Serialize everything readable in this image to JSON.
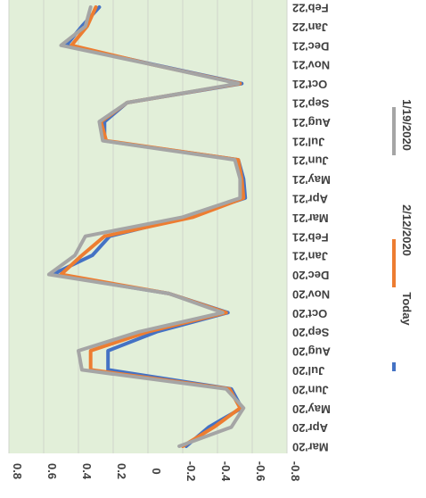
{
  "chart_data": {
    "type": "line",
    "orientation": "rotated-90",
    "plot_background": "#e2efd9",
    "grid": true,
    "legend_position": "right",
    "categories": [
      "Mar'20",
      "Apr'20",
      "May'20",
      "Jun'20",
      "Jul'20",
      "Aug'20",
      "Sep'20",
      "Oct'20",
      "Nov'20",
      "Dec'20",
      "Jan'21",
      "Feb'21",
      "Mar'21",
      "Apr'21",
      "May'21",
      "Jun'21",
      "Jul'21",
      "Aug'21",
      "Sep'21",
      "Oct'21",
      "Nov'21",
      "Dec'21",
      "Jan'22",
      "Feb'22"
    ],
    "ylim": [
      -0.8,
      0.8
    ],
    "y_ticks": [
      0.8,
      0.6,
      0.4,
      0.2,
      0,
      -0.2,
      -0.4,
      -0.6,
      -0.8
    ],
    "y_tick_labels": [
      "0.8",
      "0.6",
      "0.4",
      "0.2",
      "0",
      "-0.2",
      "-0.4",
      "-0.6",
      "-0.8"
    ],
    "series": [
      {
        "name": "Today",
        "color": "#4472c4",
        "values": [
          -0.22,
          -0.35,
          -0.54,
          -0.48,
          0.23,
          0.23,
          -0.05,
          -0.46,
          -0.12,
          0.55,
          0.32,
          0.22,
          -0.22,
          -0.56,
          -0.55,
          -0.52,
          0.25,
          0.25,
          0.12,
          -0.54,
          -0.03,
          0.47,
          0.38,
          0.28
        ]
      },
      {
        "name": "2/12/2020",
        "color": "#ed7d31",
        "values": [
          -0.2,
          -0.38,
          -0.53,
          -0.47,
          0.33,
          0.33,
          0.0,
          -0.45,
          -0.12,
          0.5,
          0.38,
          0.25,
          -0.26,
          -0.55,
          -0.54,
          -0.52,
          0.24,
          0.27,
          0.12,
          -0.53,
          -0.02,
          0.44,
          0.35,
          0.3
        ]
      },
      {
        "name": "1/19/2020",
        "color": "#a5a5a5",
        "values": [
          -0.18,
          -0.48,
          -0.55,
          -0.45,
          0.38,
          0.4,
          0.05,
          -0.43,
          -0.12,
          0.57,
          0.42,
          0.36,
          -0.2,
          -0.53,
          -0.53,
          -0.5,
          0.26,
          0.28,
          0.12,
          -0.52,
          -0.02,
          0.5,
          0.36,
          0.33
        ]
      }
    ]
  }
}
